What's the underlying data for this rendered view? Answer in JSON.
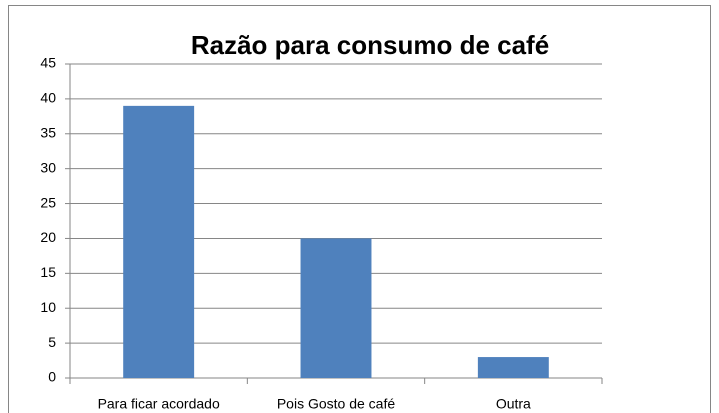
{
  "chart_data": {
    "type": "bar",
    "title": "Razão para consumo de café",
    "categories": [
      "Para ficar acordado",
      "Pois Gosto de café",
      "Outra"
    ],
    "values": [
      39,
      20,
      3
    ],
    "color": "#4f81bd",
    "ylim": [
      0,
      45
    ],
    "yticks": [
      0,
      5,
      10,
      15,
      20,
      25,
      30,
      35,
      40,
      45
    ],
    "grid": true
  }
}
